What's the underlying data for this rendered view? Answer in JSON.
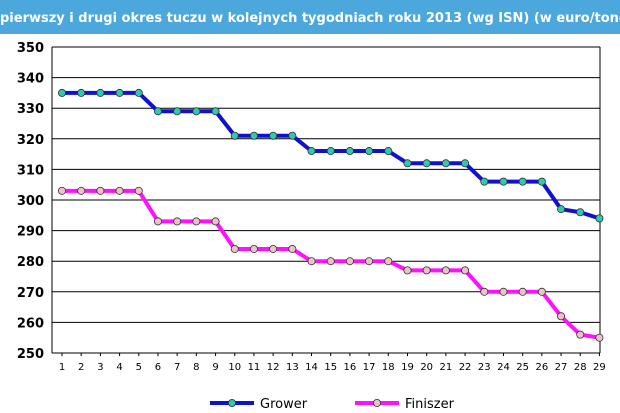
{
  "title": {
    "line1": "",
    "line2": "pierwszy i drugi okres tuczu w kolejnych tygodniach roku 2013 (wg ISN) (w euro/tonę)"
  },
  "colors": {
    "title_band": "#4ca8dc",
    "grower_line": "#1010d0",
    "grower_marker": "#30c8b0",
    "finiszer_line": "#ff10ff",
    "finiszer_marker": "#f0c0c8",
    "grid": "#000000"
  },
  "chart_data": {
    "type": "line",
    "title": "pierwszy i drugi okres tuczu w kolejnych tygodniach roku 2013 (wg ISN) (w euro/tonę)",
    "xlabel": "",
    "ylabel": "",
    "x": [
      1,
      2,
      3,
      4,
      5,
      6,
      7,
      8,
      9,
      10,
      11,
      12,
      13,
      14,
      15,
      16,
      17,
      18,
      19,
      20,
      21,
      22,
      23,
      24,
      25,
      26,
      27,
      28,
      29
    ],
    "ylim": [
      250,
      350
    ],
    "yticks": [
      250,
      260,
      270,
      280,
      290,
      300,
      310,
      320,
      330,
      340,
      350
    ],
    "grid": true,
    "legend_position": "bottom",
    "series": [
      {
        "name": "Grower",
        "values": [
          335,
          335,
          335,
          335,
          335,
          329,
          329,
          329,
          329,
          321,
          321,
          321,
          321,
          316,
          316,
          316,
          316,
          316,
          312,
          312,
          312,
          312,
          306,
          306,
          306,
          306,
          297,
          296,
          294
        ]
      },
      {
        "name": "Finiszer",
        "values": [
          303,
          303,
          303,
          303,
          303,
          293,
          293,
          293,
          293,
          284,
          284,
          284,
          284,
          280,
          280,
          280,
          280,
          280,
          277,
          277,
          277,
          277,
          270,
          270,
          270,
          270,
          262,
          256,
          255
        ]
      }
    ]
  }
}
